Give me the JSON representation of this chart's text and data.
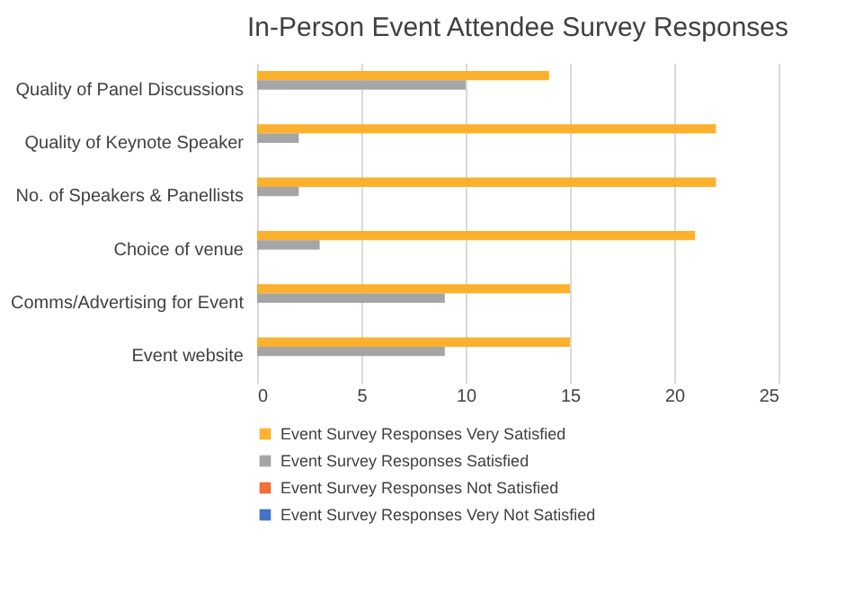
{
  "chart_data": {
    "type": "bar",
    "orientation": "horizontal",
    "title": "In-Person Event Attendee Survey Responses",
    "categories": [
      "Quality of Panel Discussions",
      "Quality of Keynote Speaker",
      "No. of Speakers & Panellists",
      "Choice of venue",
      "Comms/Advertising for Event",
      "Event website"
    ],
    "series": [
      {
        "name": "Event Survey Responses  Very Satisfied",
        "color": "#fbb12d",
        "values": [
          14,
          22,
          22,
          21,
          15,
          15
        ]
      },
      {
        "name": "Event Survey Responses  Satisfied",
        "color": "#a5a5a5",
        "values": [
          10,
          2,
          2,
          3,
          9,
          9
        ]
      },
      {
        "name": "Event Survey Responses  Not Satisfied",
        "color": "#f0703a",
        "values": [
          null,
          null,
          null,
          null,
          null,
          null
        ]
      },
      {
        "name": "Event Survey Responses  Very Not Satisfied",
        "color": "#4472c4",
        "values": [
          null,
          null,
          null,
          null,
          null,
          null
        ]
      }
    ],
    "xlim": [
      0,
      25
    ],
    "xticks": [
      0,
      5,
      10,
      15,
      20,
      25
    ],
    "grid": "x",
    "legend": "bottom"
  }
}
